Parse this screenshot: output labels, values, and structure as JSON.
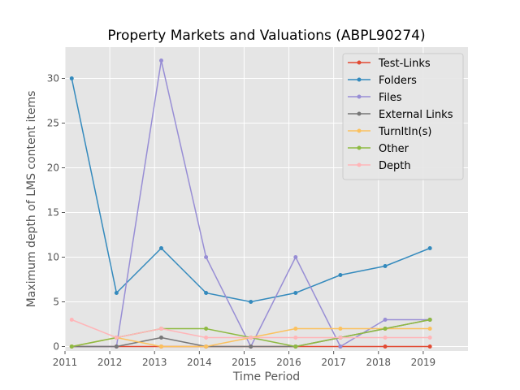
{
  "chart_data": {
    "type": "line",
    "title": "Property Markets and Valuations (ABPL90274)",
    "xlabel": "Time Period",
    "ylabel": "Maximum depth of LMS content items",
    "xlim": [
      2011,
      2020
    ],
    "ylim": [
      -0.5,
      33.5
    ],
    "xticks": [
      2011,
      2012,
      2013,
      2014,
      2015,
      2016,
      2017,
      2018,
      2019
    ],
    "yticks": [
      0,
      5,
      10,
      15,
      20,
      25,
      30
    ],
    "grid": true,
    "legend_position": "top-right",
    "x": [
      2011.15,
      2012.15,
      2013.15,
      2014.15,
      2015.15,
      2016.15,
      2017.15,
      2018.15,
      2019.15
    ],
    "series": [
      {
        "name": "Test-Links",
        "color": "#e24a33",
        "values": [
          0,
          0,
          0,
          0,
          0,
          0,
          0,
          0,
          0
        ]
      },
      {
        "name": "Folders",
        "color": "#348abd",
        "values": [
          30,
          6,
          11,
          6,
          5,
          6,
          8,
          9,
          11
        ]
      },
      {
        "name": "Files",
        "color": "#988ed5",
        "values": [
          0,
          0,
          32,
          10,
          0,
          10,
          0,
          3,
          3
        ]
      },
      {
        "name": "External Links",
        "color": "#777777",
        "values": [
          0,
          0,
          1,
          0,
          0,
          0,
          1,
          2,
          3
        ]
      },
      {
        "name": "TurnItIn(s)",
        "color": "#fbc15e",
        "values": [
          0,
          1,
          0,
          0,
          1,
          2,
          2,
          2,
          2
        ]
      },
      {
        "name": "Other",
        "color": "#8eba42",
        "values": [
          0,
          1,
          2,
          2,
          1,
          0,
          1,
          2,
          3
        ]
      },
      {
        "name": "Depth",
        "color": "#ffb5b8",
        "values": [
          3,
          1,
          2,
          1,
          1,
          1,
          1,
          1,
          1
        ]
      }
    ]
  }
}
